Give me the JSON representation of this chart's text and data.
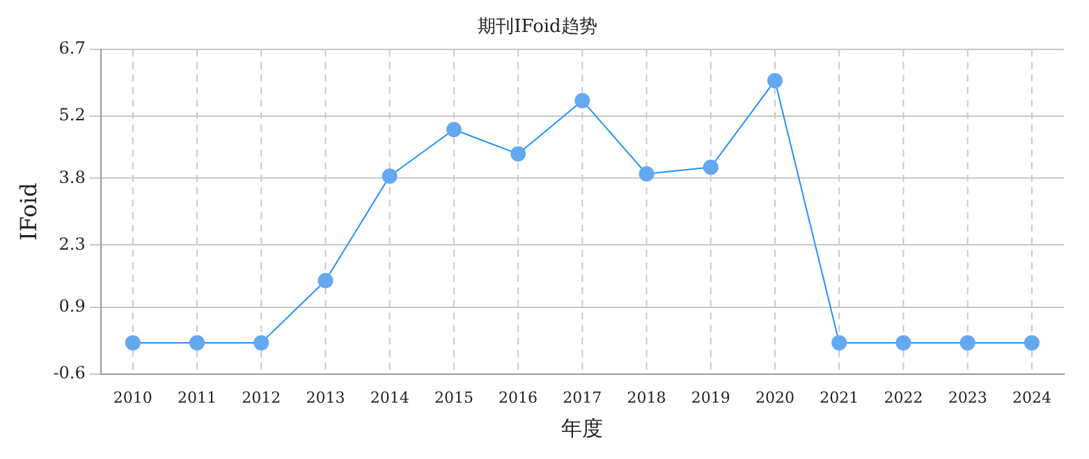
{
  "chart_data": {
    "type": "line",
    "title": "期刊IFoid趋势",
    "xlabel": "年度",
    "ylabel": "IFoid",
    "categories": [
      "2010",
      "2011",
      "2012",
      "2013",
      "2014",
      "2015",
      "2016",
      "2017",
      "2018",
      "2019",
      "2020",
      "2021",
      "2022",
      "2023",
      "2024"
    ],
    "series": [
      {
        "color": "#1e90ff",
        "values": [
          0.1,
          0.1,
          0.1,
          1.5,
          3.85,
          4.9,
          4.35,
          5.55,
          3.9,
          4.05,
          6.0,
          0.1,
          0.1,
          0.1,
          0.1
        ]
      }
    ],
    "ylim": [
      -0.6,
      6.7
    ],
    "yticks": [
      -0.6,
      0.9,
      2.3,
      3.8,
      5.2,
      6.7
    ],
    "grid": true,
    "marker": "circle",
    "line_style": "solid",
    "legend": false
  }
}
